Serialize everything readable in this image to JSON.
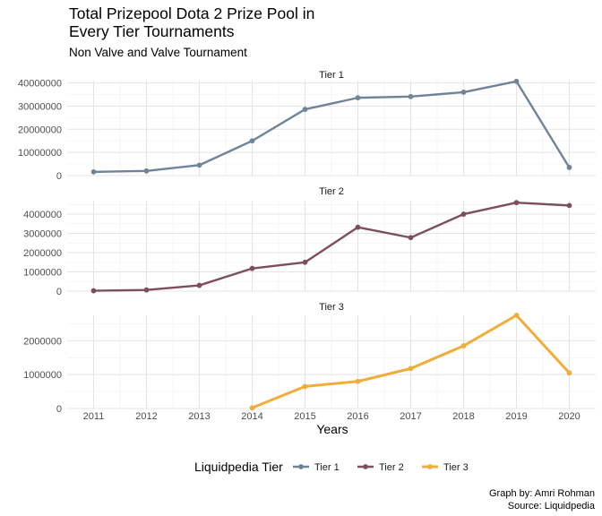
{
  "chart_data": {
    "type": "line",
    "title_lines": [
      "Total Prizepool Dota 2 Prize Pool in",
      "Every Tier Tournaments"
    ],
    "subtitle": "Non Valve and Valve Tournament",
    "xlabel": "Years",
    "x": [
      2011,
      2012,
      2013,
      2014,
      2015,
      2016,
      2017,
      2018,
      2019,
      2020
    ],
    "x_tick_labels": [
      "2011",
      "2012",
      "2013",
      "2014",
      "2015",
      "2016",
      "2017",
      "2018",
      "2019",
      "2020"
    ],
    "legend": {
      "title": "Liquidpedia Tier",
      "position": "bottom"
    },
    "grid": true,
    "panels": [
      {
        "strip": "Tier 1",
        "series_key": "Tier 1",
        "color": "#6f8499",
        "ylim": [
          0,
          41000000
        ],
        "y_ticks": [
          0,
          10000000,
          20000000,
          30000000,
          40000000
        ],
        "y_tick_labels": [
          "0",
          "10000000",
          "20000000",
          "30000000",
          "40000000"
        ],
        "x": [
          2011,
          2012,
          2013,
          2014,
          2015,
          2016,
          2017,
          2018,
          2019,
          2020
        ],
        "values": [
          1600000,
          2000000,
          4500000,
          15000000,
          28600000,
          33600000,
          34100000,
          36000000,
          40700000,
          3500000
        ]
      },
      {
        "strip": "Tier 2",
        "series_key": "Tier 2",
        "color": "#7d4d60",
        "ylim": [
          0,
          4700000
        ],
        "y_ticks": [
          0,
          1000000,
          2000000,
          3000000,
          4000000
        ],
        "y_tick_labels": [
          "0",
          "1000000",
          "2000000",
          "3000000",
          "4000000"
        ],
        "x": [
          2011,
          2012,
          2013,
          2014,
          2015,
          2016,
          2017,
          2018,
          2019,
          2020
        ],
        "values": [
          20000,
          60000,
          300000,
          1180000,
          1500000,
          3320000,
          2780000,
          4000000,
          4600000,
          4450000
        ]
      },
      {
        "strip": "Tier 3",
        "series_key": "Tier 3",
        "color": "#f0ad3a",
        "ylim": [
          0,
          2750000
        ],
        "y_ticks": [
          0,
          1000000,
          2000000
        ],
        "y_tick_labels": [
          "0",
          "1000000",
          "2000000"
        ],
        "x": [
          2014,
          2015,
          2016,
          2017,
          2018,
          2019,
          2020
        ],
        "values": [
          20000,
          650000,
          800000,
          1180000,
          1850000,
          2750000,
          1050000
        ]
      }
    ],
    "series": [
      {
        "name": "Tier 1",
        "color": "#6f8499"
      },
      {
        "name": "Tier 2",
        "color": "#7d4d60"
      },
      {
        "name": "Tier 3",
        "color": "#f0ad3a"
      }
    ],
    "caption_lines": [
      "Graph by: Amri Rohman",
      "Source: Liquidpedia"
    ]
  }
}
